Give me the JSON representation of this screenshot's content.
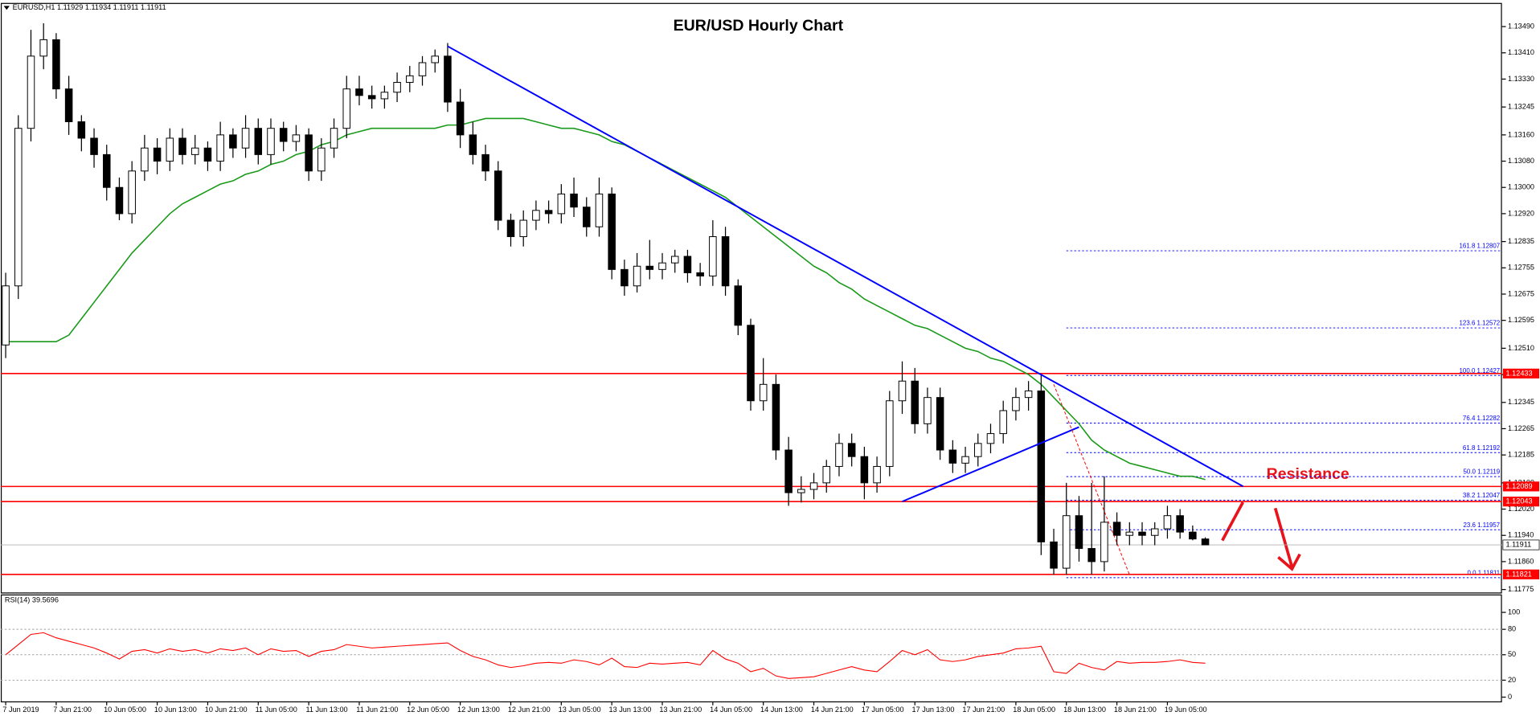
{
  "chart_data": [
    {
      "type": "candlestick",
      "title": "EUR/USD Hourly Chart",
      "header": "EURUSD,H1  1.11929 1.11934 1.11911 1.11911",
      "annotation": "Resistance",
      "categories": [
        "7 Jun 2019",
        null,
        null,
        null,
        "7 Jun 21:00",
        null,
        null,
        null,
        "10 Jun 05:00",
        null,
        null,
        null,
        "10 Jun 13:00",
        null,
        null,
        null,
        "10 Jun 21:00",
        null,
        null,
        null,
        "11 Jun 05:00",
        null,
        null,
        null,
        "11 Jun 13:00",
        null,
        null,
        null,
        "11 Jun 21:00",
        null,
        null,
        null,
        "12 Jun 05:00",
        null,
        null,
        null,
        "12 Jun 13:00",
        null,
        null,
        null,
        "12 Jun 21:00",
        null,
        null,
        null,
        "13 Jun 05:00",
        null,
        null,
        null,
        "13 Jun 13:00",
        null,
        null,
        null,
        "13 Jun 21:00",
        null,
        null,
        null,
        "14 Jun 05:00",
        null,
        null,
        null,
        "14 Jun 13:00",
        null,
        null,
        null,
        "14 Jun 21:00",
        null,
        null,
        null,
        "17 Jun 05:00",
        null,
        null,
        null,
        "17 Jun 13:00",
        null,
        null,
        null,
        "17 Jun 21:00",
        null,
        null,
        null,
        "18 Jun 05:00",
        null,
        null,
        null,
        "18 Jun 13:00",
        null,
        null,
        null,
        "18 Jun 21:00",
        null,
        null,
        null,
        "19 Jun 05:00",
        null,
        null,
        null
      ],
      "open": [
        1.1252,
        1.127,
        1.1318,
        1.134,
        1.1345,
        1.133,
        1.132,
        1.1315,
        1.131,
        1.13,
        1.1292,
        1.1305,
        1.1312,
        1.1308,
        1.1315,
        1.131,
        1.1312,
        1.1308,
        1.1316,
        1.1312,
        1.1318,
        1.131,
        1.1318,
        1.1314,
        1.1316,
        1.1305,
        1.1312,
        1.1318,
        1.133,
        1.1328,
        1.1327,
        1.1329,
        1.1332,
        1.1334,
        1.1338,
        1.134,
        1.1326,
        1.1316,
        1.131,
        1.1305,
        1.129,
        1.1285,
        1.129,
        1.1293,
        1.1292,
        1.1298,
        1.1294,
        1.1288,
        1.1298,
        1.1275,
        1.127,
        1.1276,
        1.1275,
        1.1277,
        1.1279,
        1.1274,
        1.1273,
        1.1285,
        1.127,
        1.1258,
        1.1235,
        1.124,
        1.122,
        1.1207,
        1.1208,
        1.121,
        1.1215,
        1.1222,
        1.1218,
        1.121,
        1.1215,
        1.1235,
        1.1241,
        1.1228,
        1.1236,
        1.122,
        1.1216,
        1.1218,
        1.1222,
        1.1225,
        1.1232,
        1.1236,
        1.1238,
        1.1192,
        1.1184,
        1.12,
        1.119,
        1.1186,
        1.1198,
        1.1194,
        1.1195,
        1.1194,
        1.1196,
        1.12,
        1.1195,
        1.11929
      ],
      "high": [
        1.1274,
        1.1322,
        1.1348,
        1.135,
        1.1347,
        1.1334,
        1.1322,
        1.1318,
        1.1313,
        1.1303,
        1.1308,
        1.1316,
        1.1315,
        1.1318,
        1.1318,
        1.1316,
        1.1314,
        1.132,
        1.1318,
        1.1322,
        1.1321,
        1.1321,
        1.132,
        1.1319,
        1.1318,
        1.1315,
        1.1321,
        1.1334,
        1.1334,
        1.1331,
        1.1331,
        1.1335,
        1.1337,
        1.134,
        1.1342,
        1.1344,
        1.133,
        1.132,
        1.1313,
        1.1308,
        1.1292,
        1.1293,
        1.1296,
        1.1296,
        1.1301,
        1.1303,
        1.1297,
        1.1303,
        1.13,
        1.1278,
        1.128,
        1.1284,
        1.128,
        1.1281,
        1.1281,
        1.1277,
        1.129,
        1.1288,
        1.1272,
        1.126,
        1.1248,
        1.1243,
        1.1224,
        1.1212,
        1.1213,
        1.1217,
        1.1225,
        1.1225,
        1.1221,
        1.1218,
        1.1238,
        1.1247,
        1.1245,
        1.1239,
        1.1239,
        1.1223,
        1.1221,
        1.1225,
        1.1228,
        1.1235,
        1.1239,
        1.1241,
        1.1243,
        1.1196,
        1.121,
        1.1206,
        1.121,
        1.1212,
        1.1201,
        1.1198,
        1.1198,
        1.1198,
        1.1203,
        1.1202,
        1.1197,
        1.11934
      ],
      "low": [
        1.1248,
        1.1266,
        1.1314,
        1.1336,
        1.1327,
        1.1316,
        1.1311,
        1.1306,
        1.1296,
        1.129,
        1.1289,
        1.1302,
        1.1304,
        1.1305,
        1.1307,
        1.1307,
        1.1305,
        1.1305,
        1.1309,
        1.1309,
        1.1307,
        1.1307,
        1.1311,
        1.1311,
        1.1302,
        1.1302,
        1.1309,
        1.1315,
        1.1325,
        1.1324,
        1.1324,
        1.1326,
        1.1329,
        1.1331,
        1.1335,
        1.1323,
        1.1312,
        1.1307,
        1.1302,
        1.1287,
        1.1282,
        1.1282,
        1.1287,
        1.1289,
        1.1289,
        1.1291,
        1.1285,
        1.1285,
        1.1272,
        1.1267,
        1.1268,
        1.1272,
        1.1272,
        1.1274,
        1.1271,
        1.127,
        1.127,
        1.1267,
        1.1255,
        1.1232,
        1.1232,
        1.1217,
        1.1203,
        1.1204,
        1.1205,
        1.1207,
        1.1212,
        1.1215,
        1.1205,
        1.1207,
        1.1212,
        1.1231,
        1.1225,
        1.1225,
        1.1217,
        1.1213,
        1.1213,
        1.1215,
        1.1219,
        1.1222,
        1.1229,
        1.1232,
        1.1188,
        1.1182,
        1.1182,
        1.1186,
        1.1182,
        1.1183,
        1.1191,
        1.1191,
        1.1191,
        1.1191,
        1.1193,
        1.1193,
        1.11925,
        1.11911
      ],
      "close": [
        1.127,
        1.1318,
        1.134,
        1.1345,
        1.133,
        1.132,
        1.1315,
        1.131,
        1.13,
        1.1292,
        1.1305,
        1.1312,
        1.1308,
        1.1315,
        1.131,
        1.1312,
        1.1308,
        1.1316,
        1.1312,
        1.1318,
        1.131,
        1.1318,
        1.1314,
        1.1316,
        1.1305,
        1.1312,
        1.1318,
        1.133,
        1.1328,
        1.1327,
        1.1329,
        1.1332,
        1.1334,
        1.1338,
        1.134,
        1.1326,
        1.1316,
        1.131,
        1.1305,
        1.129,
        1.1285,
        1.129,
        1.1293,
        1.1292,
        1.1298,
        1.1294,
        1.1288,
        1.1298,
        1.1275,
        1.127,
        1.1276,
        1.1275,
        1.1277,
        1.1279,
        1.1274,
        1.1273,
        1.1285,
        1.127,
        1.1258,
        1.1235,
        1.124,
        1.122,
        1.1207,
        1.1208,
        1.121,
        1.1215,
        1.1222,
        1.1218,
        1.121,
        1.1215,
        1.1235,
        1.1241,
        1.1228,
        1.1236,
        1.122,
        1.1216,
        1.1218,
        1.1222,
        1.1225,
        1.1232,
        1.1236,
        1.1238,
        1.1192,
        1.1184,
        1.12,
        1.119,
        1.1186,
        1.1198,
        1.1194,
        1.1195,
        1.1194,
        1.1196,
        1.12,
        1.1195,
        1.11929,
        1.11911
      ],
      "up_color": "#ffffff",
      "down_color": "#000000",
      "ma": {
        "color": "#1a9a1a",
        "values": [
          1.1253,
          1.1253,
          1.1253,
          1.1253,
          1.1253,
          1.1255,
          1.126,
          1.1265,
          1.127,
          1.1275,
          1.128,
          1.1284,
          1.1288,
          1.1292,
          1.1295,
          1.1297,
          1.1299,
          1.1301,
          1.1302,
          1.1304,
          1.1305,
          1.1307,
          1.1308,
          1.131,
          1.1311,
          1.1313,
          1.1314,
          1.1316,
          1.1317,
          1.1318,
          1.1318,
          1.1318,
          1.1318,
          1.1318,
          1.1318,
          1.1319,
          1.1319,
          1.132,
          1.1321,
          1.1321,
          1.1321,
          1.1321,
          1.132,
          1.1319,
          1.1318,
          1.1318,
          1.1317,
          1.1316,
          1.1314,
          1.1313,
          1.1311,
          1.1309,
          1.1307,
          1.1305,
          1.1303,
          1.1301,
          1.1299,
          1.1297,
          1.1294,
          1.1291,
          1.1288,
          1.1285,
          1.1282,
          1.1279,
          1.1276,
          1.1274,
          1.1271,
          1.1269,
          1.1266,
          1.1264,
          1.1262,
          1.126,
          1.1258,
          1.1257,
          1.1255,
          1.1253,
          1.1251,
          1.125,
          1.1248,
          1.1247,
          1.1245,
          1.1243,
          1.124,
          1.1236,
          1.1232,
          1.1228,
          1.1223,
          1.122,
          1.1218,
          1.1216,
          1.1215,
          1.1214,
          1.1213,
          1.1212,
          1.1212,
          1.1211
        ]
      },
      "ylim": [
        1.11763,
        1.13556
      ],
      "yticks": [
        {
          "value": 1.1349,
          "label": "1.13490"
        },
        {
          "value": 1.1341,
          "label": "1.13410"
        },
        {
          "value": 1.1333,
          "label": "1.13330"
        },
        1.13245,
        {
          "value": 1.1316,
          "label": "1.13160"
        },
        {
          "value": 1.1308,
          "label": "1.13080"
        },
        {
          "value": 1.13,
          "label": "1.13000"
        },
        {
          "value": 1.1292,
          "label": "1.12920"
        },
        1.12835,
        1.12755,
        1.12675,
        1.12595,
        {
          "value": 1.1251,
          "label": "1.12510"
        },
        {
          "value": 1.1243,
          "label": "1.12430"
        },
        1.12345,
        1.12265,
        1.12185,
        {
          "value": 1.121,
          "label": "1.12100"
        },
        {
          "value": 1.1202,
          "label": "1.12020"
        },
        {
          "value": 1.1194,
          "label": "1.11940"
        },
        {
          "value": 1.1186,
          "label": "1.11860"
        },
        1.11775
      ],
      "levels": [
        {
          "value": 1.12433,
          "color": "#ff0000"
        },
        {
          "value": 1.12089,
          "color": "#ff0000"
        },
        {
          "value": 1.12043,
          "color": "#ff0000"
        },
        {
          "value": 1.11821,
          "color": "#ff0000"
        }
      ],
      "current_price": 1.11911,
      "fibonacci": {
        "start": 84,
        "color": "#0000ff",
        "levels": [
          {
            "value": 1.12807,
            "label": "161.8 1.12807"
          },
          {
            "value": 1.12572,
            "label": "123.6 1.12572"
          },
          {
            "value": 1.12427,
            "label": "100.0 1.12427"
          },
          {
            "value": 1.12282,
            "label": "76.4 1.12282"
          },
          {
            "value": 1.12192,
            "label": "61.8 1.12192"
          },
          {
            "value": 1.12119,
            "label": "50.0 1.12119"
          },
          {
            "value": 1.12047,
            "label": "38.2 1.12047"
          },
          {
            "value": 1.11957,
            "label": "23.6 1.11957"
          },
          {
            "value": 1.11811,
            "label": "0.0 1.11811"
          }
        ]
      },
      "trendlines": [
        {
          "x": [
            35,
            98
          ],
          "y": [
            1.1343,
            1.12089
          ],
          "color": "#0000ff",
          "dash": false
        },
        {
          "x": [
            71,
            85
          ],
          "y": [
            1.12043,
            1.1227
          ],
          "color": "#0000ff",
          "dash": false
        },
        {
          "x": [
            83,
            89
          ],
          "y": [
            1.124,
            1.1182
          ],
          "color": "#ff0000",
          "dash": true
        }
      ]
    },
    {
      "type": "line",
      "title": "RSI(14) 39.5696",
      "color": "#ff0000",
      "values": [
        50,
        62,
        74,
        76,
        70,
        66,
        62,
        58,
        52,
        45,
        54,
        56,
        52,
        57,
        54,
        56,
        52,
        57,
        55,
        58,
        50,
        57,
        54,
        55,
        48,
        54,
        56,
        62,
        60,
        58,
        59,
        60,
        61,
        62,
        63,
        64,
        55,
        48,
        44,
        38,
        35,
        37,
        40,
        41,
        40,
        44,
        42,
        38,
        46,
        36,
        35,
        40,
        39,
        40,
        41,
        38,
        55,
        45,
        40,
        30,
        34,
        25,
        22,
        23,
        24,
        28,
        32,
        36,
        32,
        30,
        42,
        55,
        50,
        56,
        44,
        42,
        44,
        48,
        50,
        52,
        57,
        58,
        60,
        30,
        28,
        40,
        35,
        32,
        42,
        40,
        41,
        41,
        42,
        44,
        41,
        40
      ],
      "ylim": [
        -5,
        120
      ],
      "yticks": [
        100,
        80,
        50,
        20,
        0
      ],
      "levels": [
        80,
        50,
        20
      ]
    }
  ]
}
